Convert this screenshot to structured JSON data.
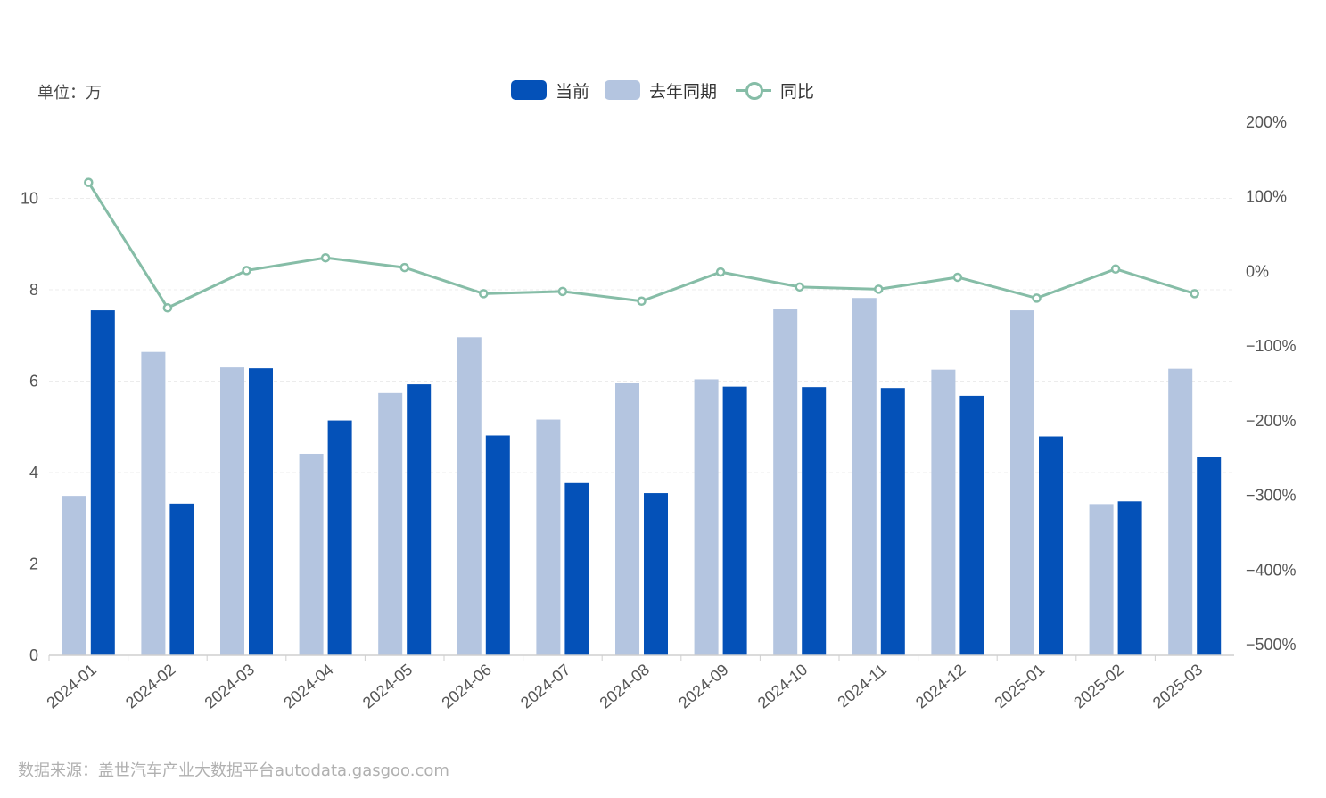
{
  "unit_label": "单位：万",
  "legend": {
    "current": "当前",
    "last_year": "去年同期",
    "yoy": "同比"
  },
  "footer": "数据来源：盖世汽车产业大数据平台autodata.gasgoo.com",
  "colors": {
    "current": "#0451b8",
    "last_year": "#b4c5e0",
    "yoy": "#86bda7",
    "grid": "#ececec",
    "axis_text": "#555555"
  },
  "chart_data": {
    "type": "bar",
    "categories": [
      "2024-01",
      "2024-02",
      "2024-03",
      "2024-04",
      "2024-05",
      "2024-06",
      "2024-07",
      "2024-08",
      "2024-09",
      "2024-10",
      "2024-11",
      "2024-12",
      "2025-01",
      "2025-02",
      "2025-03"
    ],
    "series": [
      {
        "name": "去年同期",
        "type": "bar",
        "values": [
          3.49,
          6.64,
          6.3,
          4.41,
          5.74,
          6.96,
          5.16,
          5.97,
          6.04,
          7.58,
          7.82,
          6.25,
          7.55,
          3.31,
          6.27
        ]
      },
      {
        "name": "当前",
        "type": "bar",
        "values": [
          7.55,
          3.32,
          6.28,
          5.14,
          5.93,
          4.81,
          3.77,
          3.55,
          5.88,
          5.87,
          5.85,
          5.68,
          4.79,
          3.37,
          4.35
        ]
      },
      {
        "name": "同比",
        "type": "line",
        "axis": "right",
        "values": [
          118,
          -50,
          0,
          17,
          4,
          -31,
          -28,
          -41,
          -2,
          -22,
          -25,
          -9,
          -37,
          2,
          -31
        ]
      }
    ],
    "y_left": {
      "min": 0,
      "max": 12,
      "ticks": [
        0,
        2,
        4,
        6,
        8,
        10
      ]
    },
    "y_right": {
      "min": -500,
      "max": 200,
      "ticks": [
        200,
        100,
        0,
        -100,
        -200,
        -300,
        -400,
        -500
      ],
      "tick_labels": [
        "200%",
        "100%",
        "0%",
        "−100%",
        "−200%",
        "−300%",
        "−400%",
        "−500%"
      ]
    },
    "xlabel": "",
    "ylabel": "单位：万"
  }
}
